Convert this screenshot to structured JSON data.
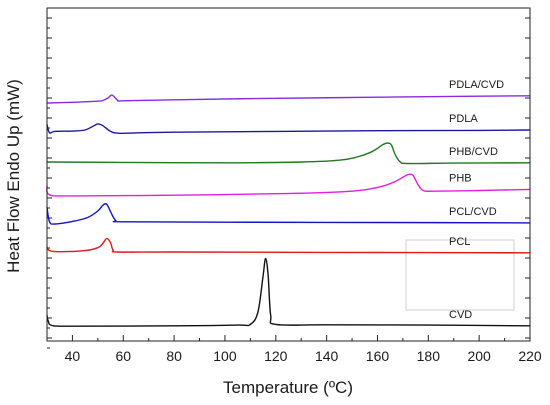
{
  "chart_data": {
    "type": "line",
    "xlabel": "Temperature (ºC)",
    "ylabel": "Heat Flow Endo Up (mW)",
    "xlim": [
      30,
      220
    ],
    "x_ticks": [
      40,
      60,
      80,
      100,
      120,
      140,
      160,
      180,
      200,
      220
    ],
    "y_tick_labels": "none",
    "y_units": "relative, curves vertically offset",
    "grid": false,
    "legend": "none; each curve labelled at right end",
    "annotations": [
      "empty light-grey rectangle in lower right of plot"
    ],
    "series": [
      {
        "name": "PDLA/CVD",
        "color": "#8a2be2",
        "points": [
          [
            30,
            30
          ],
          [
            40,
            30.2
          ],
          [
            50,
            30.5
          ],
          [
            52,
            30.7
          ],
          [
            54,
            31.4
          ],
          [
            55.5,
            32.2
          ],
          [
            57,
            31.3
          ],
          [
            58,
            30.7
          ],
          [
            60,
            30.6
          ],
          [
            80,
            30.9
          ],
          [
            120,
            31.3
          ],
          [
            160,
            31.6
          ],
          [
            200,
            31.9
          ],
          [
            220,
            32
          ]
        ]
      },
      {
        "name": "PDLA",
        "color": "#1a1a9a",
        "points": [
          [
            30,
            24
          ],
          [
            31,
            21.7
          ],
          [
            33,
            22.1
          ],
          [
            40,
            22.2
          ],
          [
            45,
            22.5
          ],
          [
            48,
            23.5
          ],
          [
            50,
            24.2
          ],
          [
            52,
            23.7
          ],
          [
            55,
            22.1
          ],
          [
            58,
            21.6
          ],
          [
            65,
            21.7
          ],
          [
            80,
            21.9
          ],
          [
            120,
            22.1
          ],
          [
            160,
            22.3
          ],
          [
            200,
            22.4
          ],
          [
            220,
            22.5
          ]
        ]
      },
      {
        "name": "PHB/CVD",
        "color": "#1f7a1f",
        "points": [
          [
            30,
            13.6
          ],
          [
            60,
            13.5
          ],
          [
            100,
            13.4
          ],
          [
            130,
            13.6
          ],
          [
            145,
            14.1
          ],
          [
            152,
            15
          ],
          [
            157,
            16.2
          ],
          [
            160,
            17.4
          ],
          [
            162,
            18.4
          ],
          [
            164,
            18.9
          ],
          [
            165.5,
            18.3
          ],
          [
            167,
            15.6
          ],
          [
            169,
            13.6
          ],
          [
            172,
            13.2
          ],
          [
            190,
            13.3
          ],
          [
            220,
            13.4
          ]
        ]
      },
      {
        "name": "PHB",
        "color": "#e020e0",
        "points": [
          [
            30,
            7
          ],
          [
            31,
            4.5
          ],
          [
            40,
            4.2
          ],
          [
            80,
            4.4
          ],
          [
            120,
            4.8
          ],
          [
            145,
            5.3
          ],
          [
            155,
            5.9
          ],
          [
            162,
            6.9
          ],
          [
            167,
            8.2
          ],
          [
            171,
            9.8
          ],
          [
            172.5,
            10.2
          ],
          [
            174,
            9.9
          ],
          [
            176,
            7.3
          ],
          [
            178,
            5.7
          ],
          [
            182,
            5.5
          ],
          [
            200,
            5.7
          ],
          [
            220,
            6
          ]
        ]
      },
      {
        "name": "PCL/CVD",
        "color": "#1212c8",
        "points": [
          [
            30,
            1
          ],
          [
            31,
            -3
          ],
          [
            33,
            -3.6
          ],
          [
            40,
            -2.9
          ],
          [
            46,
            -1.8
          ],
          [
            50,
            0
          ],
          [
            52,
            1.6
          ],
          [
            53.5,
            1.9
          ],
          [
            55,
            -0.2
          ],
          [
            57,
            -2.6
          ],
          [
            60,
            -3
          ],
          [
            100,
            -3.1
          ],
          [
            160,
            -3.2
          ],
          [
            220,
            -3.3
          ]
        ]
      },
      {
        "name": "PCL",
        "color": "#e01818",
        "points": [
          [
            30,
            -10
          ],
          [
            31,
            -11
          ],
          [
            35,
            -11.3
          ],
          [
            45,
            -11
          ],
          [
            50,
            -10.2
          ],
          [
            52,
            -9
          ],
          [
            53.5,
            -7.6
          ],
          [
            55,
            -8.8
          ],
          [
            56,
            -10.9
          ],
          [
            58,
            -11.4
          ],
          [
            80,
            -11.4
          ],
          [
            140,
            -11.5
          ],
          [
            220,
            -11.6
          ]
        ]
      },
      {
        "name": "CVD",
        "color": "#111111",
        "points": [
          [
            30,
            -29
          ],
          [
            30.5,
            -30.6
          ],
          [
            32,
            -31.8
          ],
          [
            40,
            -32
          ],
          [
            80,
            -31.9
          ],
          [
            105,
            -31.7
          ],
          [
            110,
            -31.5
          ],
          [
            113,
            -28
          ],
          [
            115,
            -18
          ],
          [
            116,
            -13.2
          ],
          [
            117,
            -18
          ],
          [
            118,
            -29
          ],
          [
            120,
            -31.5
          ],
          [
            140,
            -31.6
          ],
          [
            180,
            -31.7
          ],
          [
            220,
            -31.9
          ]
        ]
      }
    ]
  }
}
